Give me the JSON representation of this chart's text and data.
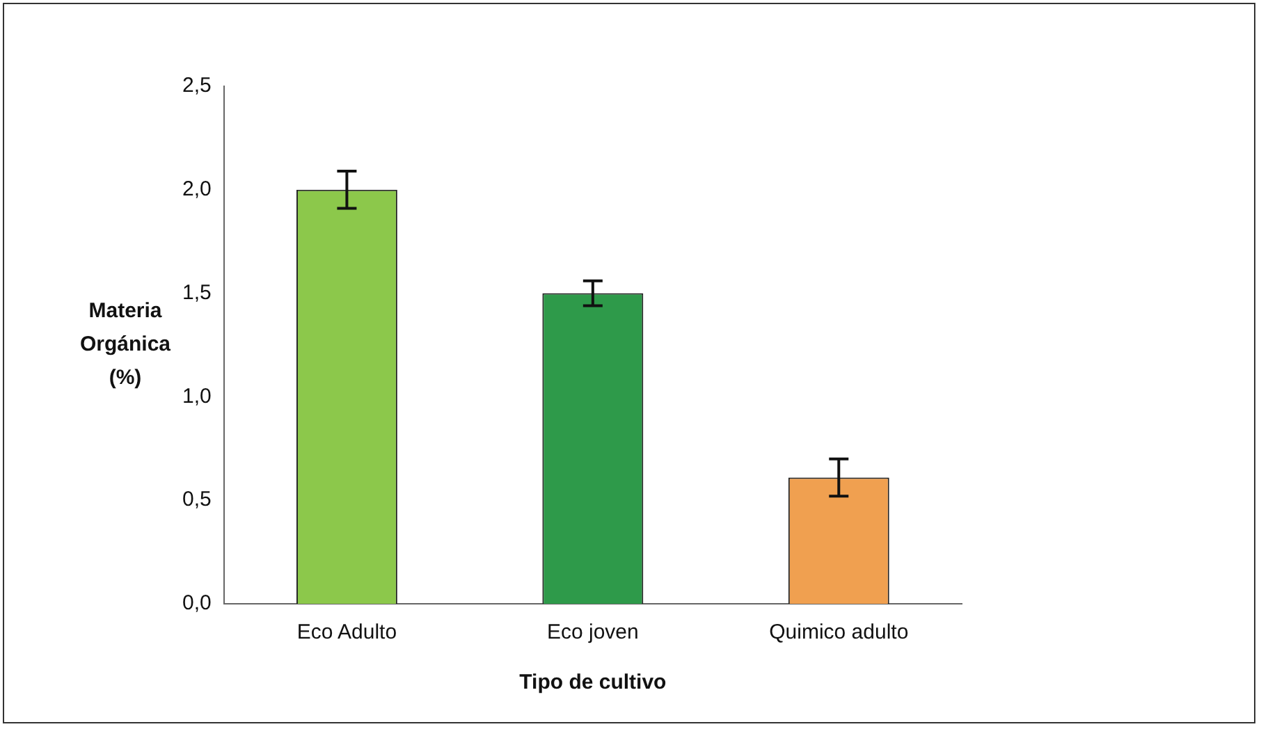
{
  "chart_data": {
    "type": "bar",
    "xlabel": "Tipo de cultivo",
    "ylabel": "Materia Orgánica (%)",
    "categories": [
      "Eco Adulto",
      "Eco joven",
      "Quimico adulto"
    ],
    "values": [
      2.0,
      1.5,
      0.61
    ],
    "errors": [
      0.09,
      0.06,
      0.09
    ],
    "colors": [
      "#8cc84b",
      "#2e9a4a",
      "#f0a050"
    ],
    "ylim": [
      0,
      2.5
    ],
    "yticks": [
      {
        "value": 0,
        "label": "0,0"
      },
      {
        "value": 0.5,
        "label": "0,5"
      },
      {
        "value": 1,
        "label": "1,0"
      },
      {
        "value": 1.5,
        "label": "1,5"
      },
      {
        "value": 2,
        "label": "2,0"
      },
      {
        "value": 2.5,
        "label": "2,5"
      }
    ],
    "grid": false,
    "legend": false
  }
}
